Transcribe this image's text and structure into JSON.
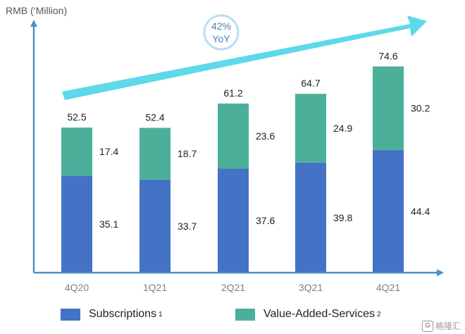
{
  "chart_data": {
    "type": "bar",
    "stacked": true,
    "ylabel": "RMB (‘Million)",
    "categories": [
      "4Q20",
      "1Q21",
      "2Q21",
      "3Q21",
      "4Q21"
    ],
    "series": [
      {
        "name": "Subscriptions",
        "footnote": "1",
        "color": "#4472c4",
        "values": [
          35.1,
          33.7,
          37.6,
          39.8,
          44.4
        ]
      },
      {
        "name": "Value-Added-Services",
        "footnote": "2",
        "color": "#4caf9a",
        "values": [
          17.4,
          18.7,
          23.6,
          24.9,
          30.2
        ]
      }
    ],
    "totals": [
      "52.5",
      "52.4",
      "61.2",
      "64.7",
      "74.6"
    ],
    "segment_labels": [
      [
        "35.1",
        "33.7",
        "37.6",
        "39.8",
        "44.4"
      ],
      [
        "17.4",
        "18.7",
        "23.6",
        "24.9",
        "30.2"
      ]
    ],
    "ylim": [
      0,
      91
    ],
    "grid": false,
    "legend_position": "bottom",
    "annotation": {
      "line1": "42%",
      "line2": "YoY",
      "arrow_color": "#5dd9ea"
    }
  },
  "watermark": "格隆汇"
}
